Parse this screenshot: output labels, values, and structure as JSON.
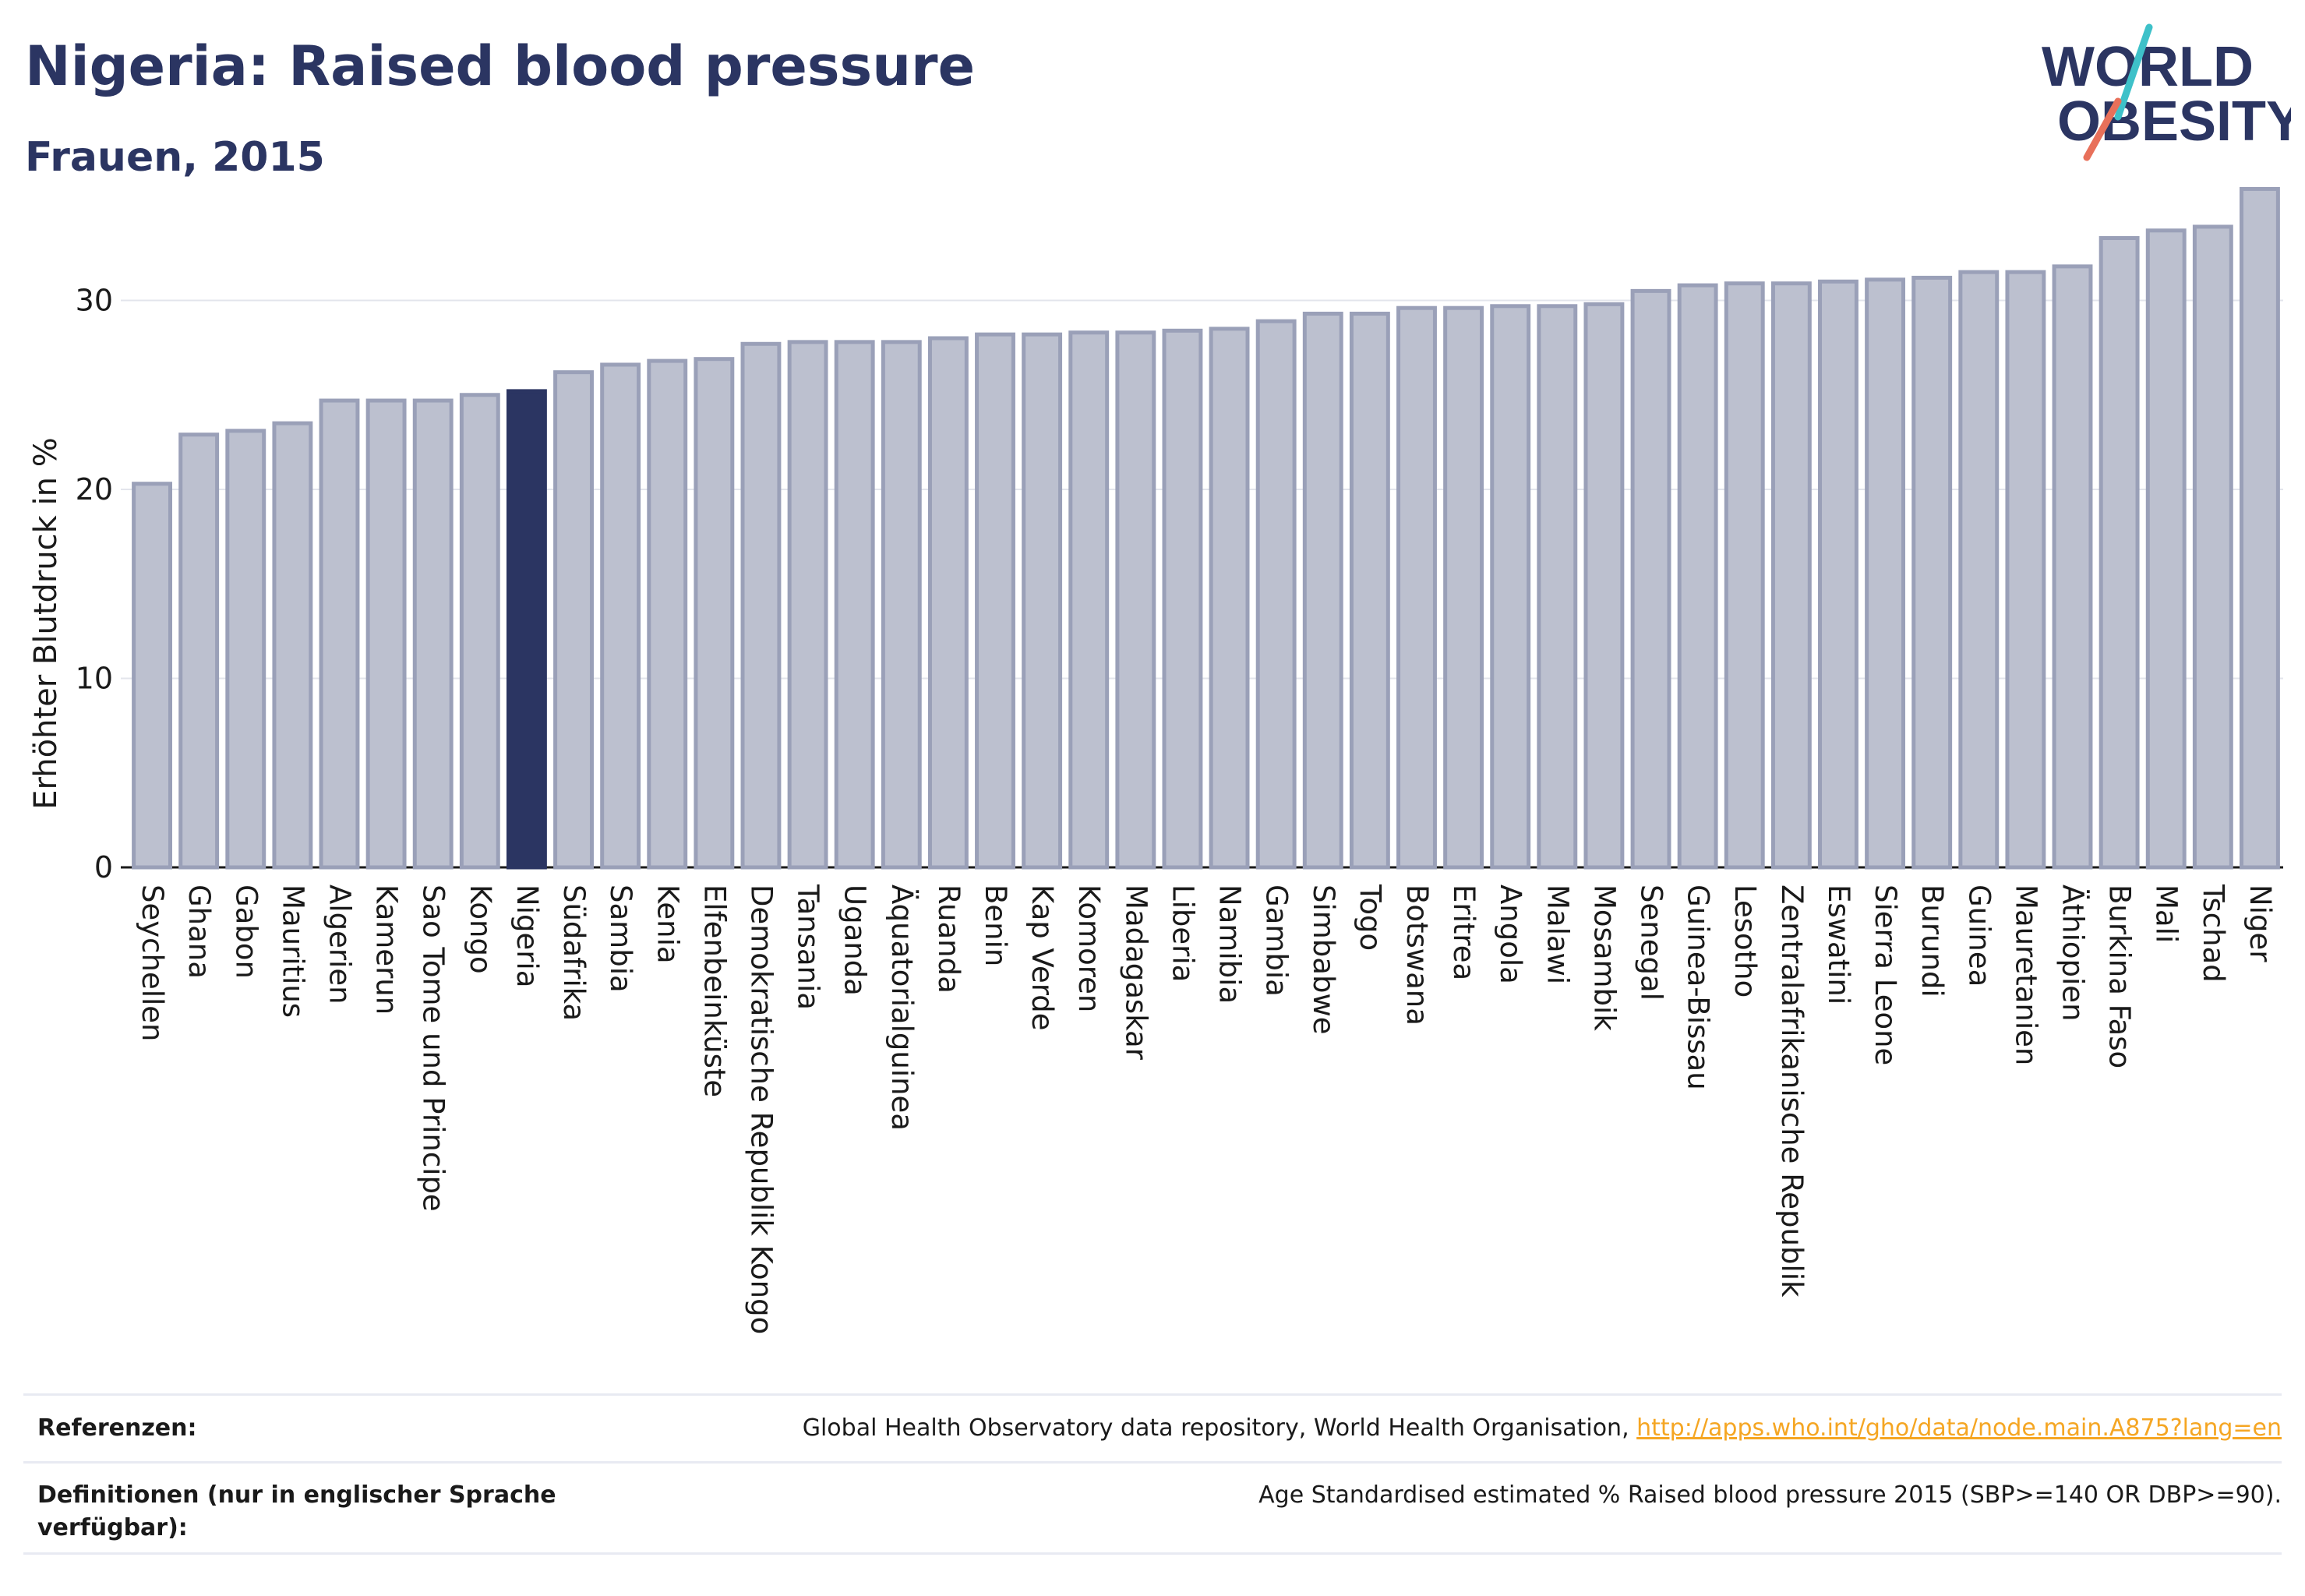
{
  "header": {
    "title": "Nigeria: Raised blood pressure",
    "subtitle": "Frauen, 2015"
  },
  "logo": {
    "line1": "WORLD",
    "line2": "OBESITY",
    "colors": {
      "text": "#2b3562",
      "slash_top": "#3ec1c9",
      "slash_bottom": "#e8705a"
    }
  },
  "colors": {
    "bar": "#bcc0cf",
    "bar_border": "#9aa0b8",
    "highlight": "#2b3562",
    "grid": "#e3e5ec"
  },
  "chart_data": {
    "type": "bar",
    "ylabel": "Erhöhter Blutdruck in %",
    "ylim": [
      0,
      36
    ],
    "yticks": [
      0,
      10,
      20,
      30
    ],
    "grid": true,
    "highlight": "Nigeria",
    "categories": [
      "Seychellen",
      "Ghana",
      "Gabon",
      "Mauritius",
      "Algerien",
      "Kamerun",
      "Sao Tome und Principe",
      "Kongo",
      "Nigeria",
      "Südafrika",
      "Sambia",
      "Kenia",
      "Elfenbeinküste",
      "Demokratische Republik Kongo",
      "Tansania",
      "Uganda",
      "Äquatorialguinea",
      "Ruanda",
      "Benin",
      "Kap Verde",
      "Komoren",
      "Madagaskar",
      "Liberia",
      "Namibia",
      "Gambia",
      "Simbabwe",
      "Togo",
      "Botswana",
      "Eritrea",
      "Angola",
      "Malawi",
      "Mosambik",
      "Senegal",
      "Guinea-Bissau",
      "Lesotho",
      "Zentralafrikanische Republik",
      "Eswatini",
      "Sierra Leone",
      "Burundi",
      "Guinea",
      "Mauretanien",
      "Äthiopien",
      "Burkina Faso",
      "Mali",
      "Tschad",
      "Niger"
    ],
    "values": [
      20.3,
      22.9,
      23.1,
      23.5,
      24.7,
      24.7,
      24.7,
      25.0,
      25.2,
      26.2,
      26.6,
      26.8,
      26.9,
      27.7,
      27.8,
      27.8,
      27.8,
      28.0,
      28.2,
      28.2,
      28.3,
      28.3,
      28.4,
      28.5,
      28.9,
      29.3,
      29.3,
      29.6,
      29.6,
      29.7,
      29.7,
      29.8,
      30.5,
      30.8,
      30.9,
      30.9,
      31.0,
      31.1,
      31.2,
      31.5,
      31.5,
      31.8,
      33.3,
      33.7,
      33.9,
      35.9
    ]
  },
  "footer": {
    "references_label": "Referenzen:",
    "references_text": "Global Health Observatory data repository, World Health Organisation, ",
    "references_link": "http://apps.who.int/gho/data/node.main.A875?lang=en",
    "definitions_label": "Definitionen (nur in englischer Sprache verfügbar):",
    "definitions_text": "Age Standardised estimated % Raised blood pressure 2015 (SBP>=140 OR DBP>=90)."
  }
}
